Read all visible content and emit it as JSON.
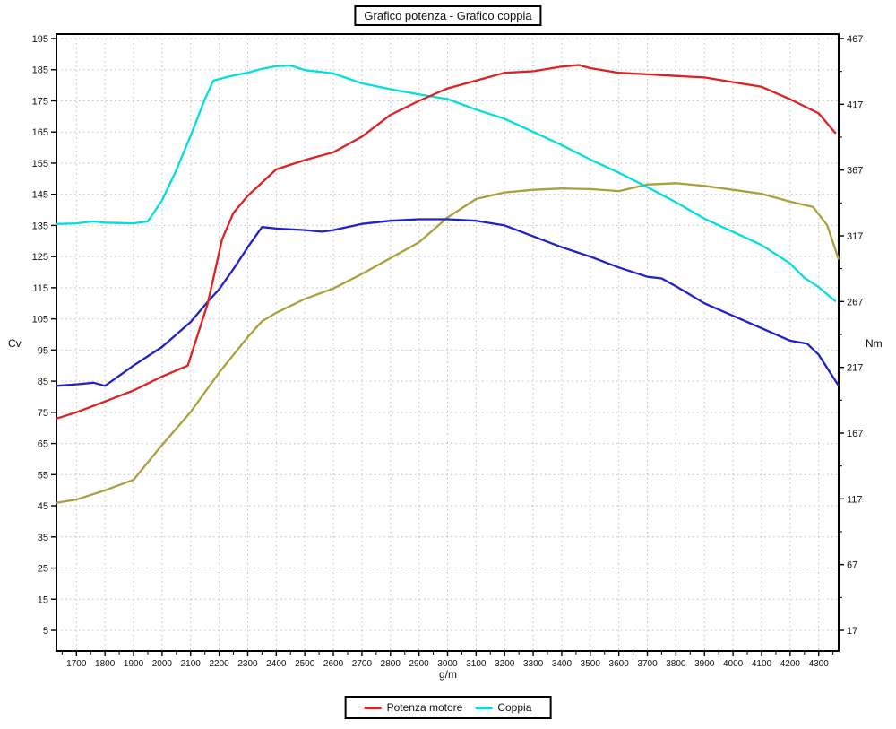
{
  "title": "Grafico potenza - Grafico coppia",
  "legend": [
    {
      "label": "Potenza motore",
      "color": "#e02020"
    },
    {
      "label": "Coppia",
      "color": "#00dfdf"
    }
  ],
  "chart_data": {
    "type": "line",
    "title": "Grafico potenza - Grafico coppia",
    "xlabel": "g/m",
    "grid": true,
    "legend_position": "bottom",
    "x_axis": {
      "min": 1630,
      "max": 4370,
      "ticks": [
        1700,
        1800,
        1900,
        2000,
        2100,
        2200,
        2300,
        2400,
        2500,
        2600,
        2700,
        2800,
        2900,
        3000,
        3100,
        3200,
        3300,
        3400,
        3500,
        3600,
        3700,
        3800,
        3900,
        4000,
        4100,
        4200,
        4300
      ],
      "minor_ticks": [
        1650,
        1750,
        1850,
        1950,
        2050,
        2150,
        2250,
        2350,
        2450,
        2550,
        2650,
        2750,
        2850,
        2950,
        3050,
        3150,
        3250,
        3350,
        3450,
        3550,
        3650,
        3750,
        3850,
        3950,
        4050,
        4150,
        4250,
        4350
      ]
    },
    "y_left": {
      "label": "Cv",
      "min": 5,
      "max": 195,
      "ticks": [
        195,
        185,
        175,
        165,
        155,
        145,
        135,
        125,
        115,
        105,
        95,
        85,
        75,
        65,
        55,
        45,
        35,
        25,
        15,
        5
      ]
    },
    "y_right": {
      "label": "Nm",
      "min": 17,
      "max": 467,
      "ticks": [
        467,
        417,
        367,
        317,
        267,
        217,
        167,
        117,
        67,
        17
      ],
      "minor_ticks": [
        442,
        392,
        342,
        292,
        242,
        192,
        142,
        92,
        42
      ]
    },
    "series": [
      {
        "name": "unlabeled-olive-torque",
        "axis": "right",
        "unit": "Nm",
        "color": "#aaa03c",
        "in_legend": false,
        "points": [
          [
            1630,
            114
          ],
          [
            1700,
            116.5
          ],
          [
            1800,
            123.5
          ],
          [
            1900,
            131.5
          ],
          [
            2000,
            158
          ],
          [
            2100,
            183
          ],
          [
            2200,
            213
          ],
          [
            2300,
            240
          ],
          [
            2350,
            252
          ],
          [
            2400,
            258.5
          ],
          [
            2500,
            269
          ],
          [
            2600,
            277
          ],
          [
            2700,
            288
          ],
          [
            2800,
            300
          ],
          [
            2900,
            312
          ],
          [
            3000,
            331
          ],
          [
            3100,
            345
          ],
          [
            3200,
            350
          ],
          [
            3300,
            352
          ],
          [
            3400,
            353
          ],
          [
            3500,
            352.5
          ],
          [
            3600,
            351
          ],
          [
            3700,
            356
          ],
          [
            3800,
            357
          ],
          [
            3900,
            355
          ],
          [
            4000,
            352
          ],
          [
            4100,
            349
          ],
          [
            4200,
            343
          ],
          [
            4280,
            339
          ],
          [
            4330,
            325
          ],
          [
            4370,
            299
          ]
        ]
      },
      {
        "name": "unlabeled-blue-power",
        "axis": "left",
        "unit": "Cv",
        "color": "#2121cc",
        "in_legend": false,
        "points": [
          [
            1630,
            83.5
          ],
          [
            1700,
            84
          ],
          [
            1760,
            84.5
          ],
          [
            1800,
            83.5
          ],
          [
            1900,
            90
          ],
          [
            2000,
            96
          ],
          [
            2100,
            104
          ],
          [
            2160,
            110.5
          ],
          [
            2200,
            114.5
          ],
          [
            2250,
            121
          ],
          [
            2300,
            128
          ],
          [
            2350,
            134.5
          ],
          [
            2400,
            134
          ],
          [
            2500,
            133.5
          ],
          [
            2560,
            133
          ],
          [
            2600,
            133.5
          ],
          [
            2700,
            135.5
          ],
          [
            2800,
            136.5
          ],
          [
            2900,
            137
          ],
          [
            3000,
            137
          ],
          [
            3100,
            136.5
          ],
          [
            3200,
            135
          ],
          [
            3300,
            131.5
          ],
          [
            3400,
            128
          ],
          [
            3500,
            125
          ],
          [
            3600,
            121.5
          ],
          [
            3700,
            118.5
          ],
          [
            3750,
            118
          ],
          [
            3800,
            115.5
          ],
          [
            3900,
            110
          ],
          [
            4000,
            106
          ],
          [
            4100,
            102
          ],
          [
            4200,
            98
          ],
          [
            4260,
            97
          ],
          [
            4300,
            93.5
          ],
          [
            4370,
            83.5
          ]
        ]
      },
      {
        "name": "Coppia",
        "axis": "right",
        "unit": "Nm",
        "color": "#00dfdf",
        "in_legend": true,
        "points": [
          [
            1630,
            326
          ],
          [
            1700,
            326.5
          ],
          [
            1760,
            328
          ],
          [
            1800,
            327
          ],
          [
            1900,
            326.5
          ],
          [
            1950,
            328
          ],
          [
            2000,
            344
          ],
          [
            2050,
            367
          ],
          [
            2100,
            393
          ],
          [
            2150,
            421
          ],
          [
            2180,
            435
          ],
          [
            2250,
            439
          ],
          [
            2300,
            441
          ],
          [
            2350,
            444
          ],
          [
            2400,
            446
          ],
          [
            2450,
            446.5
          ],
          [
            2500,
            443
          ],
          [
            2600,
            440.5
          ],
          [
            2700,
            433
          ],
          [
            2800,
            428.5
          ],
          [
            2900,
            424.5
          ],
          [
            3000,
            421
          ],
          [
            3100,
            413
          ],
          [
            3200,
            406
          ],
          [
            3300,
            396
          ],
          [
            3400,
            386
          ],
          [
            3500,
            375
          ],
          [
            3600,
            365
          ],
          [
            3700,
            354
          ],
          [
            3800,
            342.5
          ],
          [
            3900,
            330
          ],
          [
            4000,
            320
          ],
          [
            4100,
            310
          ],
          [
            4200,
            296
          ],
          [
            4250,
            285
          ],
          [
            4300,
            278
          ],
          [
            4360,
            267
          ]
        ]
      },
      {
        "name": "Potenza motore",
        "axis": "left",
        "unit": "Cv",
        "color": "#e02020",
        "in_legend": true,
        "points": [
          [
            1630,
            73
          ],
          [
            1700,
            75
          ],
          [
            1800,
            78.5
          ],
          [
            1900,
            82
          ],
          [
            2000,
            86.5
          ],
          [
            2090,
            90
          ],
          [
            2160,
            110
          ],
          [
            2210,
            130.5
          ],
          [
            2250,
            139
          ],
          [
            2300,
            144.5
          ],
          [
            2400,
            153
          ],
          [
            2500,
            156
          ],
          [
            2600,
            158.5
          ],
          [
            2700,
            163.5
          ],
          [
            2800,
            170.5
          ],
          [
            2900,
            175
          ],
          [
            3000,
            179
          ],
          [
            3100,
            181.5
          ],
          [
            3200,
            184
          ],
          [
            3300,
            184.5
          ],
          [
            3400,
            186
          ],
          [
            3460,
            186.5
          ],
          [
            3500,
            185.5
          ],
          [
            3600,
            184
          ],
          [
            3700,
            183.5
          ],
          [
            3800,
            183
          ],
          [
            3900,
            182.5
          ],
          [
            4000,
            181
          ],
          [
            4100,
            179.5
          ],
          [
            4200,
            175.5
          ],
          [
            4300,
            171
          ],
          [
            4360,
            164.5
          ]
        ]
      }
    ]
  }
}
